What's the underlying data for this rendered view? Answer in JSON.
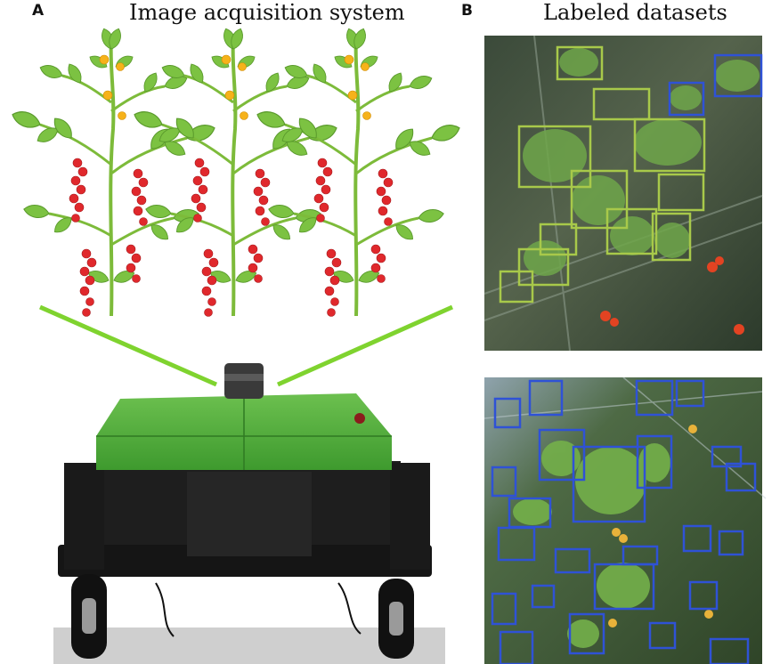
{
  "panel_a": {
    "letter": "A",
    "title": "Image acquisition system"
  },
  "panel_b": {
    "letter": "B",
    "title": "Labeled datasets"
  },
  "colors": {
    "leaf": "#7cc242",
    "stem": "#8cc63f",
    "fruit": "#e0282c",
    "flower": "#f6b21a",
    "robot_top": "#4aa536",
    "robot_body": "#1e1e1e",
    "bbox_disease": "#a8c94a",
    "bbox_leaf": "#2f52d6"
  },
  "icons": [
    "tomato-plant-illustration",
    "robot-photo",
    "greenhouse-photo-disease",
    "greenhouse-photo-leaves"
  ]
}
